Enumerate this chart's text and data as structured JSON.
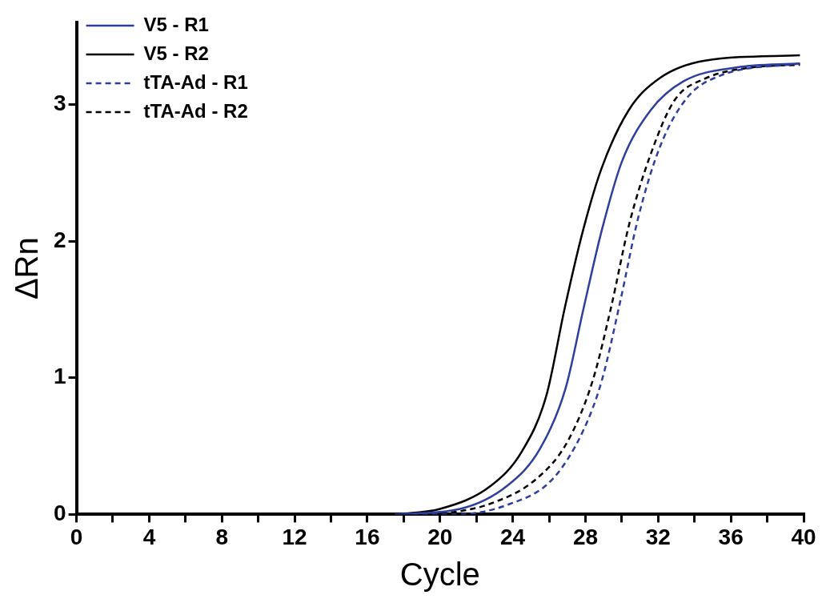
{
  "chart_data": {
    "type": "line",
    "xlabel": "Cycle",
    "ylabel": "ΔRn",
    "xlim": [
      0,
      40
    ],
    "ylim": [
      0,
      3.6
    ],
    "xticks": [
      0,
      {
        "value": 2,
        "label": null
      },
      4,
      {
        "value": 6,
        "label": null
      },
      8,
      {
        "value": 10,
        "label": null
      },
      12,
      {
        "value": 14,
        "label": null
      },
      16,
      {
        "value": 18,
        "label": null
      },
      20,
      {
        "value": 22,
        "label": null
      },
      24,
      {
        "value": 26,
        "label": null
      },
      28,
      {
        "value": 30,
        "label": null
      },
      32,
      {
        "value": 34,
        "label": null
      },
      36,
      {
        "value": 38,
        "label": null
      },
      40
    ],
    "yticks": [
      0,
      1,
      2,
      3
    ],
    "grid": false,
    "legend": "top left",
    "marker": "none",
    "series": [
      {
        "name": "V5 - R1",
        "color": "#2e3e9c",
        "line_style": "solid",
        "x": [
          17.5,
          21.1,
          23.7,
          25.5,
          26.9,
          27.9,
          28.9,
          30.0,
          31.6,
          33.4,
          36.3,
          39.8
        ],
        "values": [
          0,
          0.04,
          0.21,
          0.48,
          0.92,
          1.51,
          2.08,
          2.58,
          2.96,
          3.17,
          3.27,
          3.3
        ]
      },
      {
        "name": "V5 - R2",
        "color": "#000000",
        "line_style": "solid",
        "x": [
          17.5,
          20.0,
          22.8,
          24.5,
          25.85,
          26.86,
          27.87,
          28.88,
          30.39,
          32.06,
          34.57,
          39.8
        ],
        "values": [
          0,
          0.04,
          0.21,
          0.46,
          0.87,
          1.51,
          2.08,
          2.53,
          2.96,
          3.19,
          3.32,
          3.36
        ]
      },
      {
        "name": "tTA-Ad - R1",
        "color": "#2e3e9c",
        "line_style": "dashed",
        "x": [
          18.5,
          20.8,
          23.7,
          26.2,
          27.9,
          28.9,
          29.9,
          30.9,
          32.1,
          33.6,
          35.4,
          39.8
        ],
        "values": [
          0,
          0,
          0.07,
          0.26,
          0.62,
          0.98,
          1.55,
          2.17,
          2.69,
          3.05,
          3.21,
          3.3
        ]
      },
      {
        "name": "tTA-Ad - R2",
        "color": "#000000",
        "line_style": "dashed",
        "x": [
          18.5,
          20.3,
          22.8,
          25.3,
          27.0,
          28.4,
          29.4,
          30.4,
          31.6,
          32.9,
          34.6,
          37.1,
          39.8
        ],
        "values": [
          0,
          0.01,
          0.08,
          0.26,
          0.53,
          0.98,
          1.51,
          2.12,
          2.64,
          3.03,
          3.19,
          3.27,
          3.29
        ]
      }
    ]
  }
}
